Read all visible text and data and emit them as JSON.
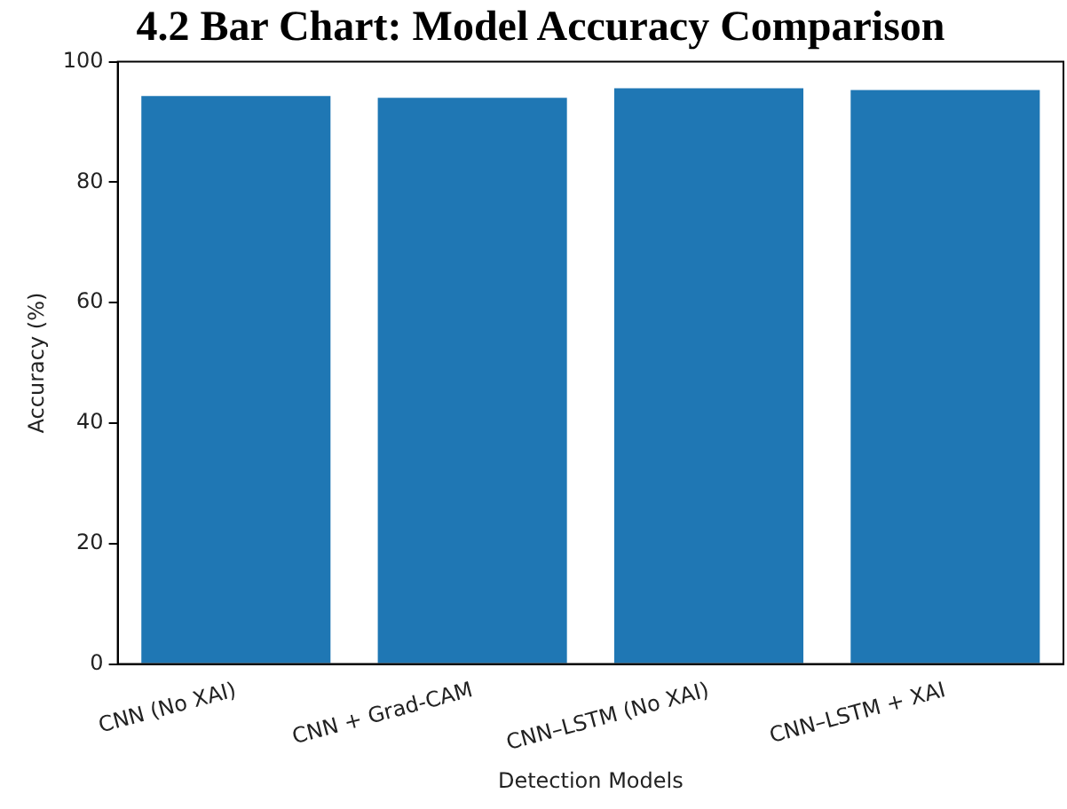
{
  "chart_data": {
    "type": "bar",
    "title": "4.2 Bar Chart: Model Accuracy Comparison",
    "xlabel": "Detection Models",
    "ylabel": "Accuracy (%)",
    "categories": [
      "CNN (No XAI)",
      "CNN + Grad-CAM",
      "CNN–LSTM (No XAI)",
      "CNN–LSTM + XAI"
    ],
    "values": [
      94.3,
      94.0,
      95.6,
      95.3
    ],
    "color": "#1f77b4",
    "ylim": [
      0,
      100
    ],
    "yticks": [
      0,
      20,
      40,
      60,
      80,
      100
    ],
    "grid": false,
    "legend": false
  }
}
